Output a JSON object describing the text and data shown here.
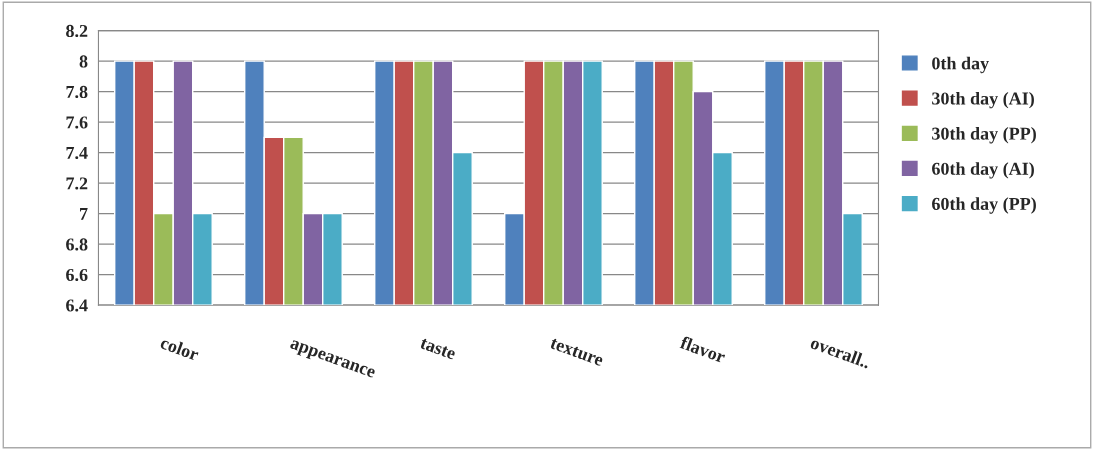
{
  "chart_data": {
    "type": "bar",
    "categories": [
      "color",
      "appearance",
      "taste",
      "texture",
      "flavor",
      "overall.."
    ],
    "series": [
      {
        "name": "0th day",
        "color": "#4f81bd",
        "values": [
          8,
          8,
          8,
          7,
          8,
          8
        ]
      },
      {
        "name": "30th day (AI)",
        "color": "#c0504d",
        "values": [
          8,
          7.5,
          8,
          8,
          8,
          8
        ]
      },
      {
        "name": "30th day (PP)",
        "color": "#9bbb59",
        "values": [
          7,
          7.5,
          8,
          8,
          8,
          8
        ]
      },
      {
        "name": "60th day (AI)",
        "color": "#8064a2",
        "values": [
          8,
          7,
          8,
          8,
          7.8,
          8
        ]
      },
      {
        "name": "60th day (PP)",
        "color": "#4bacc6",
        "values": [
          7,
          7,
          7.4,
          8,
          7.4,
          7
        ]
      }
    ],
    "ylim": [
      6.4,
      8.2
    ],
    "yticks": [
      6.4,
      6.6,
      6.8,
      7,
      7.2,
      7.4,
      7.6,
      7.8,
      8,
      8.2
    ],
    "grid": "y",
    "legend": "right"
  }
}
